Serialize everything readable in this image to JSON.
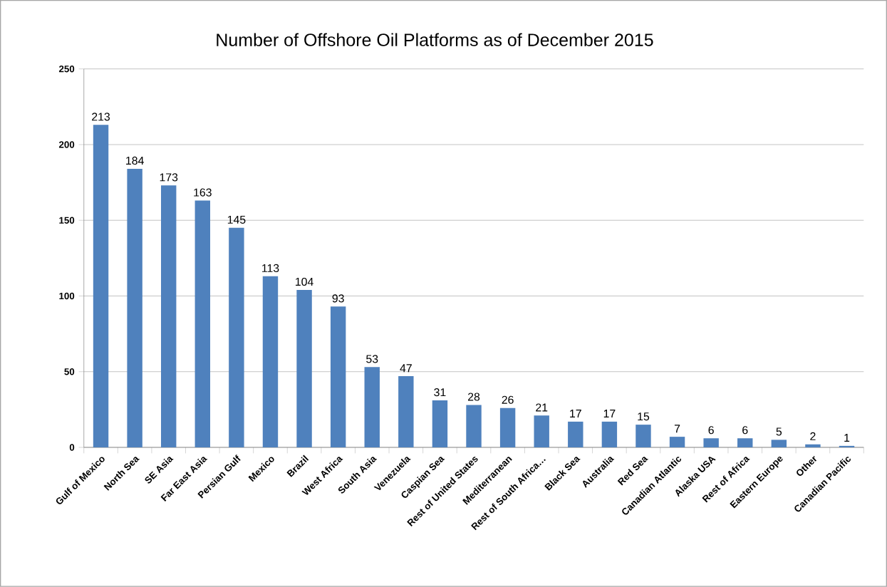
{
  "chart_data": {
    "type": "bar",
    "title": "Number of Offshore Oil Platforms as of December 2015",
    "categories": [
      "Gulf of Mexico",
      "North Sea",
      "SE Asia",
      "Far East Asia",
      "Persian Gulf",
      "Mexico",
      "Brazil",
      "West Africa",
      "South Asia",
      "Venezuela",
      "Caspian Sea",
      "Rest of United States",
      "Mediterranean",
      "Rest of South Africa…",
      "Black Sea",
      "Australia",
      "Red Sea",
      "Canadian Atlantic",
      "Alaska USA",
      "Rest of Africa",
      "Eastern Europe",
      "Other",
      "Canadian Pacific"
    ],
    "values": [
      213,
      184,
      173,
      163,
      145,
      113,
      104,
      93,
      53,
      47,
      31,
      28,
      26,
      21,
      17,
      17,
      15,
      7,
      6,
      6,
      5,
      2,
      1
    ],
    "color": "#4f81bd",
    "ylim": [
      0,
      250
    ],
    "yticks": [
      0,
      50,
      100,
      150,
      200,
      250
    ],
    "grid": "y",
    "data_labels": true
  }
}
